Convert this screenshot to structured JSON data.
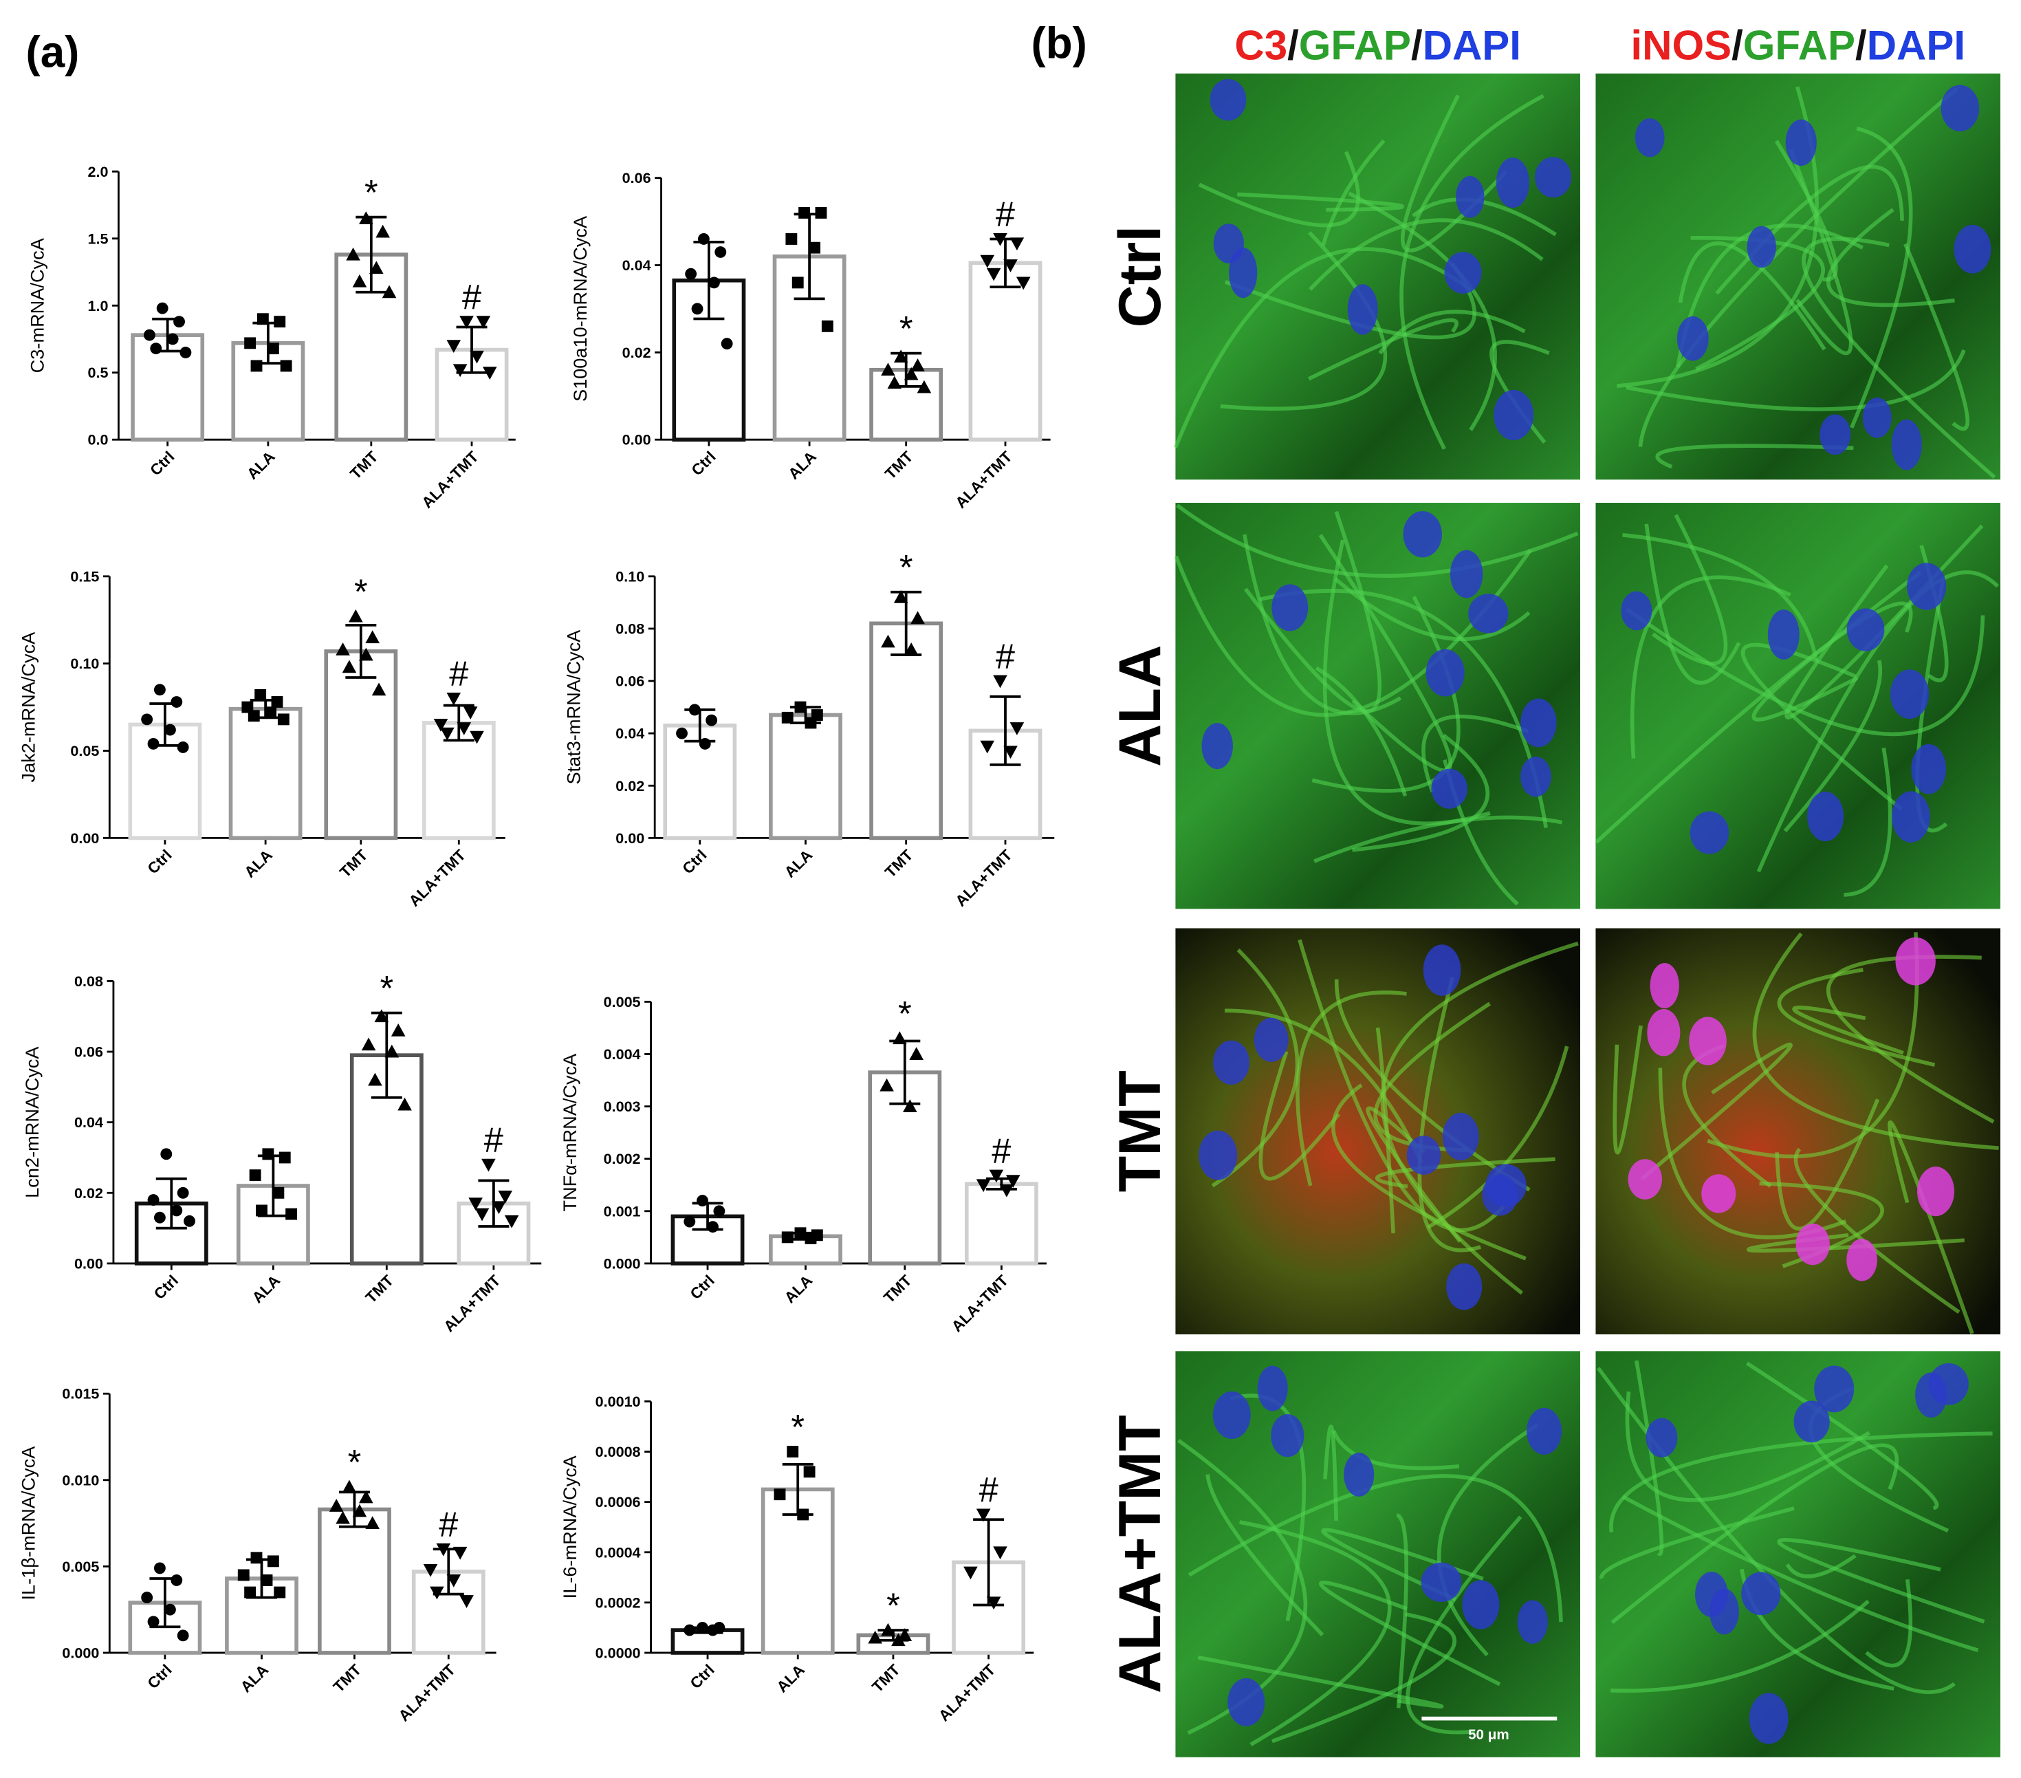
{
  "panel_a": "(a)",
  "panel_b": {
    "label": "(b)",
    "headers": [
      [
        {
          "text": "C3",
          "color": "#e8201f"
        },
        {
          "text": "/",
          "color": "#111111"
        },
        {
          "text": "GFAP",
          "color": "#2ca02c"
        },
        {
          "text": "/",
          "color": "#111111"
        },
        {
          "text": "DAPI",
          "color": "#1f3fe0"
        }
      ],
      [
        {
          "text": "iNOS",
          "color": "#e8201f"
        },
        {
          "text": "/",
          "color": "#111111"
        },
        {
          "text": "GFAP",
          "color": "#2ca02c"
        },
        {
          "text": "/",
          "color": "#111111"
        },
        {
          "text": "DAPI",
          "color": "#1f3fe0"
        }
      ]
    ],
    "rows": [
      "Ctrl",
      "ALA",
      "TMT",
      "ALA+TMT"
    ],
    "scale_bar": "50 μm"
  },
  "chart_data": [
    {
      "type": "bar",
      "ylabel": "C3-mRNA/CycA",
      "categories": [
        "Ctrl",
        "ALA",
        "TMT",
        "ALA+TMT"
      ],
      "values": [
        0.78,
        0.72,
        1.38,
        0.67
      ],
      "errors": [
        0.12,
        0.15,
        0.28,
        0.17
      ],
      "points": [
        [
          0.98,
          0.88,
          0.78,
          0.75,
          0.68,
          0.65
        ],
        [
          0.9,
          0.88,
          0.72,
          0.68,
          0.55,
          0.55
        ],
        [
          1.65,
          1.55,
          1.38,
          1.28,
          1.18,
          1.1
        ],
        [
          0.88,
          0.88,
          0.7,
          0.62,
          0.52,
          0.5
        ]
      ],
      "annotations": [
        null,
        null,
        "*",
        "#"
      ],
      "colors": [
        "#9a9a9a",
        "#9a9a9a",
        "#8a8a8a",
        "#cfcfcf"
      ],
      "markers": [
        "circle",
        "square",
        "triangle-up",
        "triangle-down"
      ],
      "ylim": [
        0,
        2
      ],
      "yticks": [
        {
          "value": 0,
          "label": "0.0"
        },
        {
          "value": 0.5,
          "label": "0.5"
        },
        {
          "value": 1,
          "label": "1.0"
        },
        {
          "value": 1.5,
          "label": "1.5"
        },
        {
          "value": 2,
          "label": "2.0"
        }
      ]
    },
    {
      "type": "bar",
      "ylabel": "S100a10-mRNA/CycA",
      "categories": [
        "Ctrl",
        "ALA",
        "TMT",
        "ALA+TMT"
      ],
      "values": [
        0.0365,
        0.042,
        0.016,
        0.0405
      ],
      "errors": [
        0.0088,
        0.0097,
        0.0038,
        0.0055
      ],
      "points": [
        [
          0.046,
          0.043,
          0.038,
          0.036,
          0.03,
          0.022
        ],
        [
          0.052,
          0.052,
          0.046,
          0.044,
          0.036,
          0.026
        ],
        [
          0.019,
          0.017,
          0.016,
          0.015,
          0.013,
          0.012
        ],
        [
          0.046,
          0.045,
          0.041,
          0.04,
          0.038,
          0.036
        ]
      ],
      "annotations": [
        null,
        null,
        "*",
        "#"
      ],
      "colors": [
        "#111111",
        "#9a9a9a",
        "#8a8a8a",
        "#cfcfcf"
      ],
      "markers": [
        "circle",
        "square",
        "triangle-up",
        "triangle-down"
      ],
      "ylim": [
        0,
        0.06
      ],
      "yticks": [
        {
          "value": 0,
          "label": "0.00"
        },
        {
          "value": 0.02,
          "label": "0.02"
        },
        {
          "value": 0.04,
          "label": "0.04"
        },
        {
          "value": 0.06,
          "label": "0.06"
        }
      ]
    },
    {
      "type": "bar",
      "ylabel": "Jak2-mRNA/CycA",
      "categories": [
        "Ctrl",
        "ALA",
        "TMT",
        "ALA+TMT"
      ],
      "values": [
        0.065,
        0.074,
        0.107,
        0.066
      ],
      "errors": [
        0.012,
        0.005,
        0.015,
        0.01
      ],
      "points": [
        [
          0.085,
          0.078,
          0.068,
          0.062,
          0.054,
          0.052
        ],
        [
          0.082,
          0.078,
          0.075,
          0.072,
          0.07,
          0.068
        ],
        [
          0.127,
          0.115,
          0.108,
          0.105,
          0.098,
          0.085
        ],
        [
          0.08,
          0.072,
          0.065,
          0.063,
          0.06,
          0.058
        ]
      ],
      "annotations": [
        null,
        null,
        "*",
        "#"
      ],
      "colors": [
        "#d8d8d8",
        "#9a9a9a",
        "#8a8a8a",
        "#d8d8d8"
      ],
      "markers": [
        "circle",
        "square",
        "triangle-up",
        "triangle-down"
      ],
      "ylim": [
        0,
        0.15
      ],
      "yticks": [
        {
          "value": 0,
          "label": "0.00"
        },
        {
          "value": 0.05,
          "label": "0.05"
        },
        {
          "value": 0.1,
          "label": "0.10"
        },
        {
          "value": 0.15,
          "label": "0.15"
        }
      ]
    },
    {
      "type": "bar",
      "ylabel": "Stat3-mRNA/CycA",
      "categories": [
        "Ctrl",
        "ALA",
        "TMT",
        "ALA+TMT"
      ],
      "values": [
        0.043,
        0.047,
        0.082,
        0.041
      ],
      "errors": [
        0.006,
        0.003,
        0.012,
        0.013
      ],
      "points": [
        [
          0.049,
          0.045,
          0.04,
          0.036
        ],
        [
          0.05,
          0.047,
          0.046,
          0.044
        ],
        [
          0.092,
          0.084,
          0.075,
          0.072
        ],
        [
          0.06,
          0.042,
          0.035,
          0.033
        ]
      ],
      "annotations": [
        null,
        null,
        "*",
        "#"
      ],
      "colors": [
        "#d0d0d0",
        "#9a9a9a",
        "#8a8a8a",
        "#d0d0d0"
      ],
      "markers": [
        "circle",
        "square",
        "triangle-up",
        "triangle-down"
      ],
      "ylim": [
        0,
        0.1
      ],
      "yticks": [
        {
          "value": 0,
          "label": "0.00"
        },
        {
          "value": 0.02,
          "label": "0.02"
        },
        {
          "value": 0.04,
          "label": "0.04"
        },
        {
          "value": 0.06,
          "label": "0.06"
        },
        {
          "value": 0.08,
          "label": "0.08"
        },
        {
          "value": 0.1,
          "label": "0.10"
        }
      ]
    },
    {
      "type": "bar",
      "ylabel": "Lcn2-mRNA/CycA",
      "categories": [
        "Ctrl",
        "ALA",
        "TMT",
        "ALA+TMT"
      ],
      "values": [
        0.017,
        0.022,
        0.059,
        0.017
      ],
      "errors": [
        0.007,
        0.0085,
        0.012,
        0.0065
      ],
      "points": [
        [
          0.031,
          0.02,
          0.018,
          0.015,
          0.013,
          0.012
        ],
        [
          0.031,
          0.03,
          0.025,
          0.02,
          0.015,
          0.014
        ],
        [
          0.07,
          0.066,
          0.062,
          0.06,
          0.052,
          0.045
        ],
        [
          0.028,
          0.019,
          0.017,
          0.016,
          0.014,
          0.012
        ]
      ],
      "annotations": [
        null,
        null,
        "*",
        "#"
      ],
      "colors": [
        "#111111",
        "#9a9a9a",
        "#555555",
        "#cfcfcf"
      ],
      "markers": [
        "circle",
        "square",
        "triangle-up",
        "triangle-down"
      ],
      "ylim": [
        0,
        0.08
      ],
      "yticks": [
        {
          "value": 0,
          "label": "0.00"
        },
        {
          "value": 0.02,
          "label": "0.02"
        },
        {
          "value": 0.04,
          "label": "0.04"
        },
        {
          "value": 0.06,
          "label": "0.06"
        },
        {
          "value": 0.08,
          "label": "0.08"
        }
      ]
    },
    {
      "type": "bar",
      "ylabel": "TNFα-mRNA/CycA",
      "categories": [
        "Ctrl",
        "ALA",
        "TMT",
        "ALA+TMT"
      ],
      "values": [
        0.0009,
        0.00052,
        0.00365,
        0.00152
      ],
      "errors": [
        0.00025,
        6e-05,
        0.0006,
        0.0001
      ],
      "points": [
        [
          0.0012,
          0.001,
          0.0008,
          0.0007
        ],
        [
          0.00058,
          0.00054,
          0.0005,
          0.00048
        ],
        [
          0.0043,
          0.004,
          0.0034,
          0.003
        ],
        [
          0.00168,
          0.00158,
          0.0015,
          0.0014
        ]
      ],
      "annotations": [
        null,
        null,
        "*",
        "#"
      ],
      "colors": [
        "#111111",
        "#9a9a9a",
        "#8a8a8a",
        "#cfcfcf"
      ],
      "markers": [
        "circle",
        "square",
        "triangle-up",
        "triangle-down"
      ],
      "ylim": [
        0,
        0.005
      ],
      "yticks": [
        {
          "value": 0,
          "label": "0.000"
        },
        {
          "value": 0.001,
          "label": "0.001"
        },
        {
          "value": 0.002,
          "label": "0.002"
        },
        {
          "value": 0.003,
          "label": "0.003"
        },
        {
          "value": 0.004,
          "label": "0.004"
        },
        {
          "value": 0.005,
          "label": "0.005"
        }
      ]
    },
    {
      "type": "bar",
      "ylabel": "IL-1β-mRNA/CycA",
      "categories": [
        "Ctrl",
        "ALA",
        "TMT",
        "ALA+TMT"
      ],
      "values": [
        0.0029,
        0.0043,
        0.0083,
        0.0047
      ],
      "errors": [
        0.0014,
        0.0011,
        0.001,
        0.0013
      ],
      "points": [
        [
          0.0049,
          0.0042,
          0.0032,
          0.0025,
          0.0018,
          0.001
        ],
        [
          0.0055,
          0.0053,
          0.0045,
          0.0042,
          0.0035,
          0.0035
        ],
        [
          0.0096,
          0.009,
          0.0085,
          0.0082,
          0.0078,
          0.0075
        ],
        [
          0.006,
          0.0058,
          0.0048,
          0.0042,
          0.0035,
          0.003
        ]
      ],
      "annotations": [
        null,
        null,
        "*",
        "#"
      ],
      "colors": [
        "#9a9a9a",
        "#9a9a9a",
        "#8a8a8a",
        "#cfcfcf"
      ],
      "markers": [
        "circle",
        "square",
        "triangle-up",
        "triangle-down"
      ],
      "ylim": [
        0,
        0.015
      ],
      "yticks": [
        {
          "value": 0,
          "label": "0.000"
        },
        {
          "value": 0.005,
          "label": "0.005"
        },
        {
          "value": 0.01,
          "label": "0.010"
        },
        {
          "value": 0.015,
          "label": "0.015"
        }
      ]
    },
    {
      "type": "bar",
      "ylabel": "IL-6-mRNA/CycA",
      "categories": [
        "Ctrl",
        "ALA",
        "TMT",
        "ALA+TMT"
      ],
      "values": [
        9e-05,
        0.00065,
        7e-05,
        0.00036
      ],
      "errors": [
        1e-05,
        0.0001,
        2e-05,
        0.00017
      ],
      "points": [
        [
          0.0001,
          0.0001,
          9e-05,
          9e-05
        ],
        [
          0.0008,
          0.00072,
          0.00063,
          0.00055
        ],
        [
          9e-05,
          7e-05,
          6e-05,
          5e-05
        ],
        [
          0.00055,
          0.0004,
          0.00032,
          0.0002
        ]
      ],
      "annotations": [
        null,
        "*",
        "*",
        "#"
      ],
      "colors": [
        "#111111",
        "#9a9a9a",
        "#8a8a8a",
        "#cfcfcf"
      ],
      "markers": [
        "circle",
        "square",
        "triangle-up",
        "triangle-down"
      ],
      "ylim": [
        0,
        0.001
      ],
      "yticks": [
        {
          "value": 0,
          "label": "0.0000"
        },
        {
          "value": 0.0002,
          "label": "0.0002"
        },
        {
          "value": 0.0004,
          "label": "0.0004"
        },
        {
          "value": 0.0006,
          "label": "0.0006"
        },
        {
          "value": 0.0008,
          "label": "0.0008"
        },
        {
          "value": 0.001,
          "label": "0.0010"
        }
      ]
    }
  ]
}
